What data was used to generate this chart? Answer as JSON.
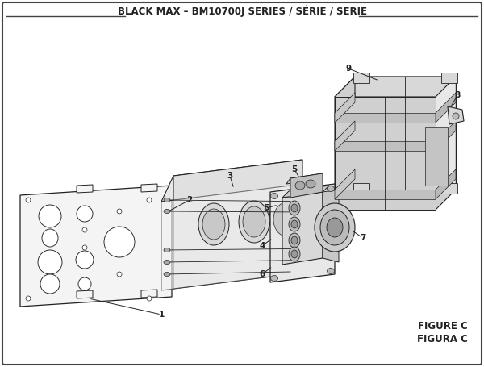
{
  "title": "BLACK MAX – BM10700J SERIES / SÉRIE / SERIE",
  "title_fontsize": 8.5,
  "figure_C_label": "FIGURE C",
  "figura_C_label": "FIGURA C",
  "bg_color": "#ffffff",
  "lc": "#222222",
  "fc_light": "#f0f0f0",
  "fc_mid": "#d8d8d8",
  "fc_dark": "#bbbbbb"
}
